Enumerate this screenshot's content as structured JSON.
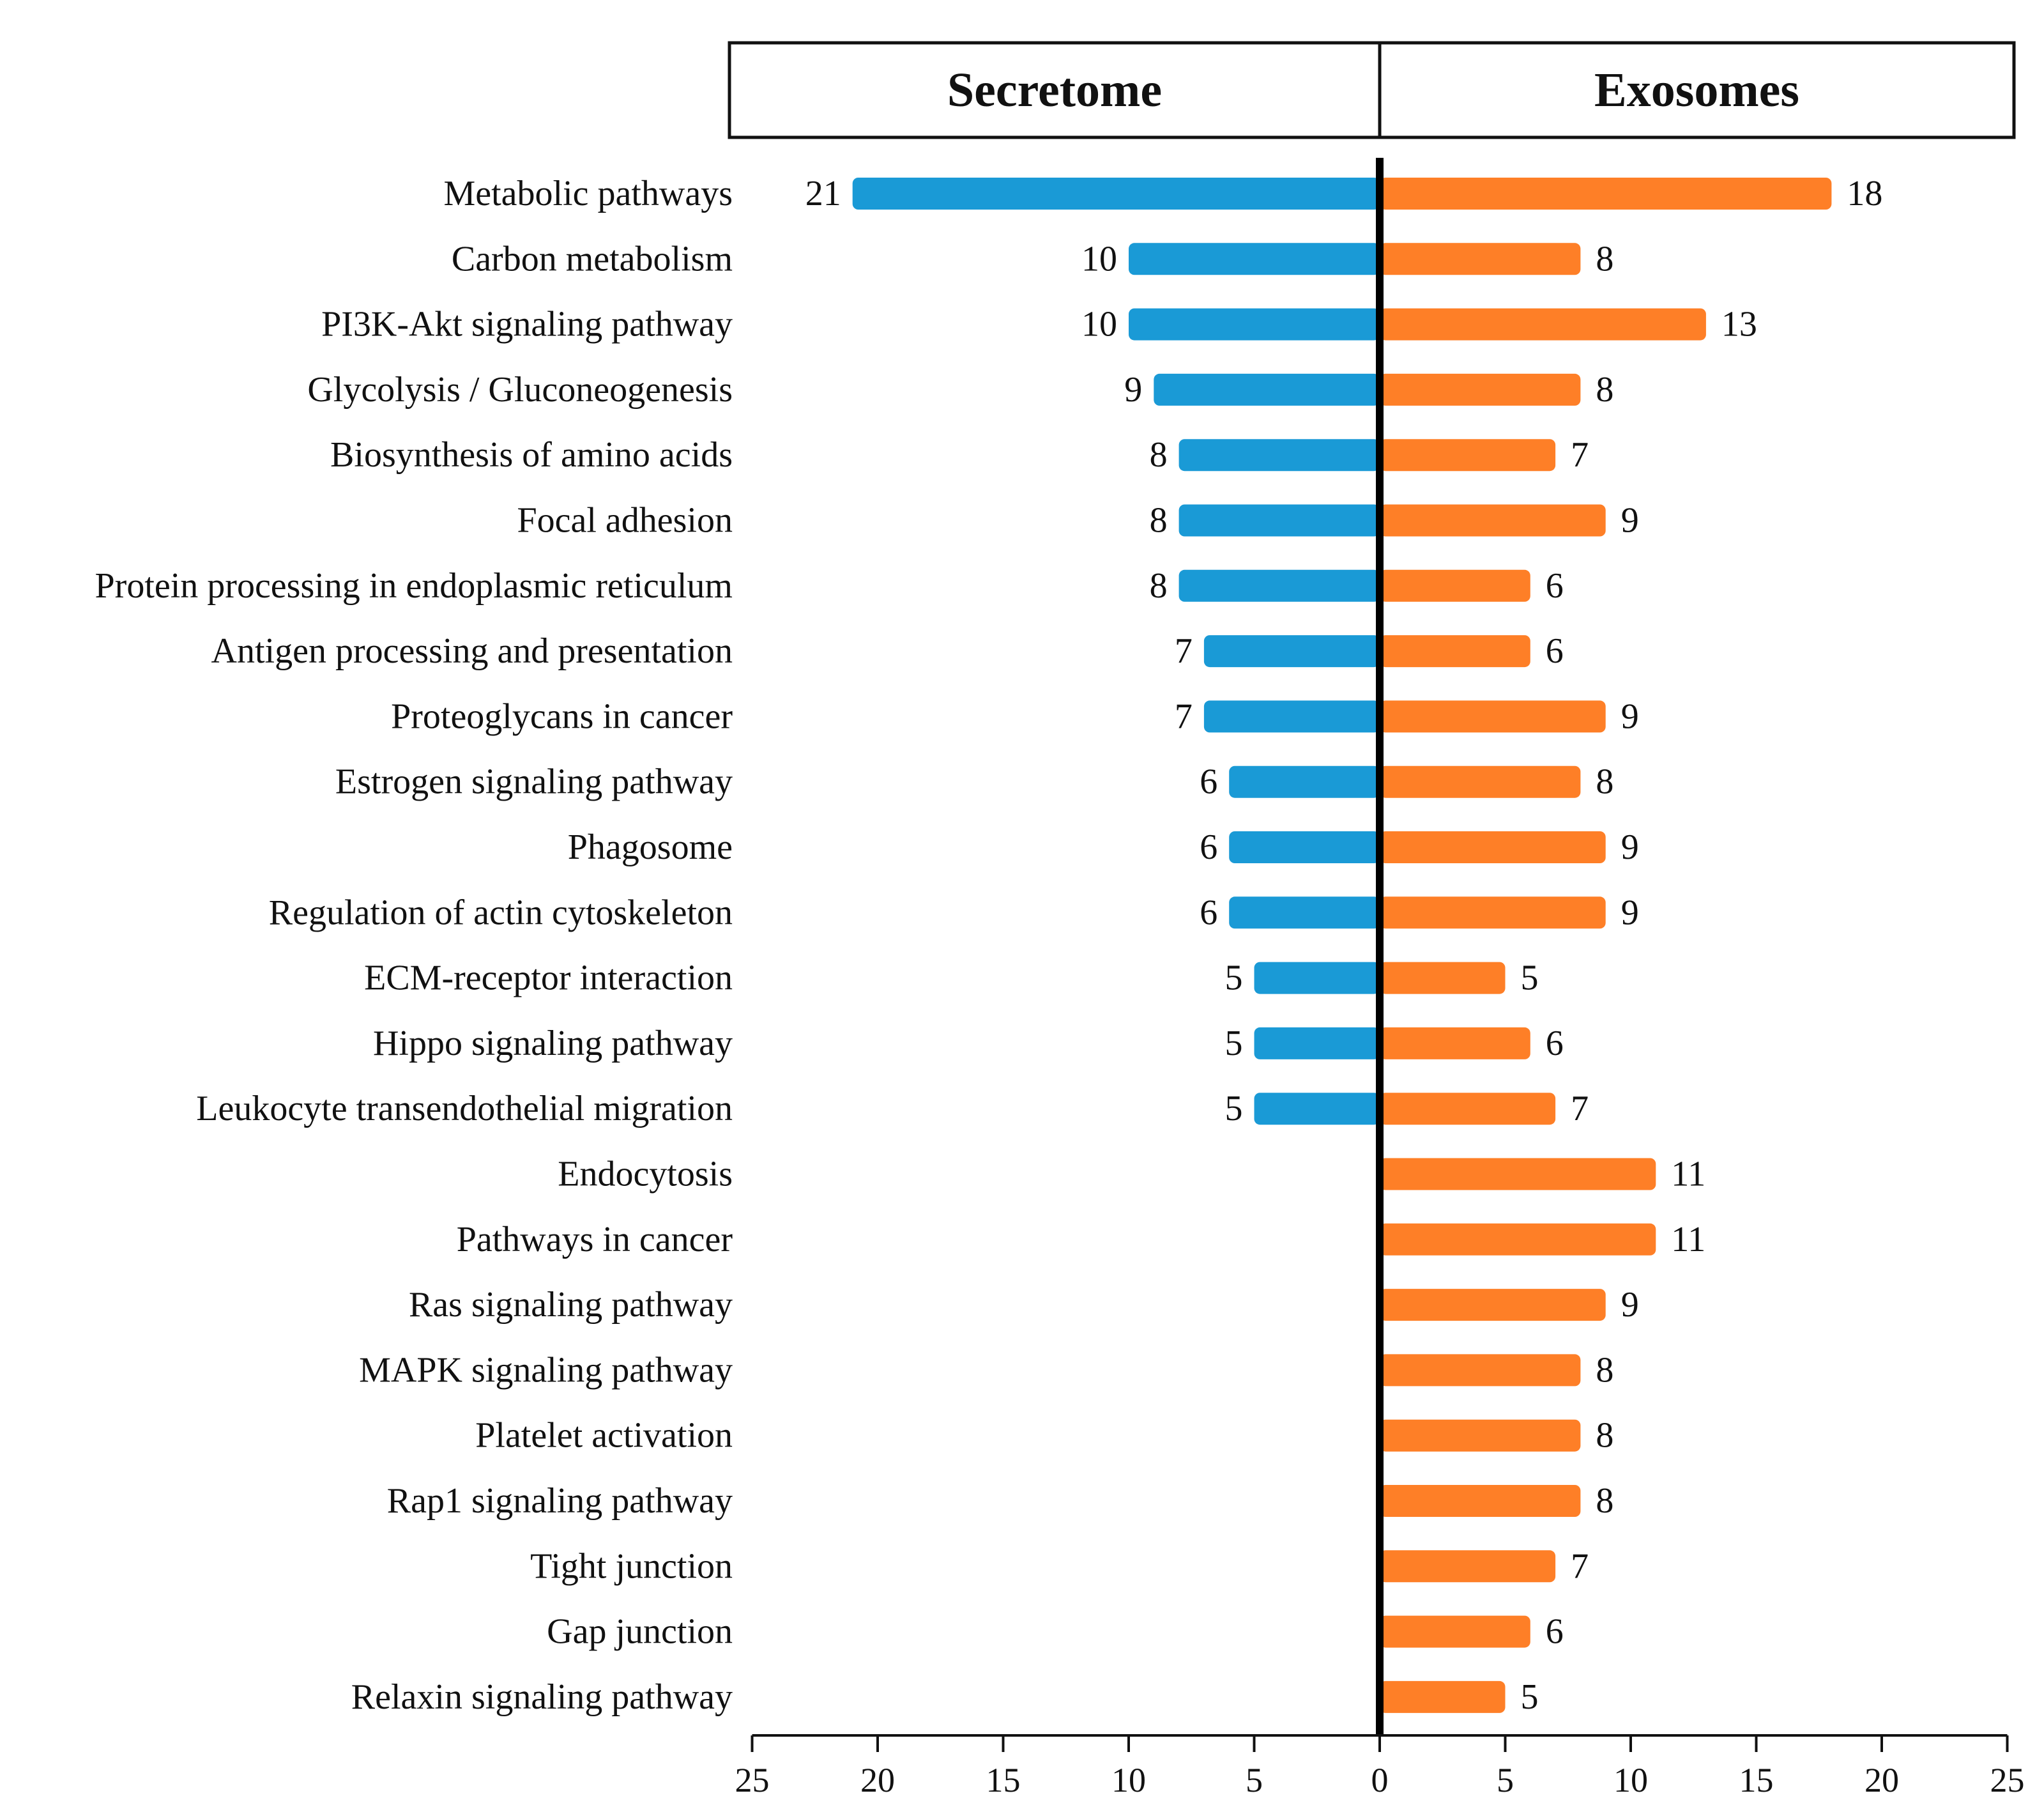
{
  "chart_data": {
    "type": "bar",
    "orientation": "horizontal-diverging",
    "title": "",
    "xlabel": "",
    "ylabel": "",
    "xlim": [
      -25,
      25
    ],
    "x_ticks": [
      {
        "value": -25,
        "label": "25"
      },
      {
        "value": -20,
        "label": "20"
      },
      {
        "value": -15,
        "label": "15"
      },
      {
        "value": -10,
        "label": "10"
      },
      {
        "value": -5,
        "label": "5"
      },
      {
        "value": 0,
        "label": "0"
      },
      {
        "value": 5,
        "label": "5"
      },
      {
        "value": 10,
        "label": "10"
      },
      {
        "value": 15,
        "label": "15"
      },
      {
        "value": 20,
        "label": "20"
      },
      {
        "value": 25,
        "label": "25"
      }
    ],
    "grid": false,
    "categories": [
      "Metabolic pathways",
      "Carbon metabolism",
      "PI3K-Akt signaling pathway",
      "Glycolysis / Gluconeogenesis",
      "Biosynthesis of amino acids",
      "Focal adhesion",
      "Protein processing in endoplasmic reticulum",
      "Antigen processing and presentation",
      "Proteoglycans in cancer",
      "Estrogen signaling pathway",
      "Phagosome",
      "Regulation of actin cytoskeleton",
      "ECM-receptor interaction",
      "Hippo signaling pathway",
      "Leukocyte transendothelial migration",
      "Endocytosis",
      "Pathways in cancer",
      "Ras signaling pathway",
      "MAPK signaling pathway",
      "Platelet activation",
      "Rap1 signaling pathway",
      "Tight junction",
      "Gap junction",
      "Relaxin signaling pathway"
    ],
    "series": [
      {
        "name": "Secretome",
        "side": "left",
        "color": "#1a9ad6",
        "values": [
          21,
          10,
          10,
          9,
          8,
          8,
          8,
          7,
          7,
          6,
          6,
          6,
          5,
          5,
          5,
          null,
          null,
          null,
          null,
          null,
          null,
          null,
          null,
          null
        ]
      },
      {
        "name": "Exosomes",
        "side": "right",
        "color": "#fe7f27",
        "values": [
          18,
          8,
          13,
          8,
          7,
          9,
          6,
          6,
          9,
          8,
          9,
          9,
          5,
          6,
          7,
          11,
          11,
          9,
          8,
          8,
          8,
          7,
          6,
          5
        ]
      }
    ],
    "legend": "header boxes above each side"
  }
}
